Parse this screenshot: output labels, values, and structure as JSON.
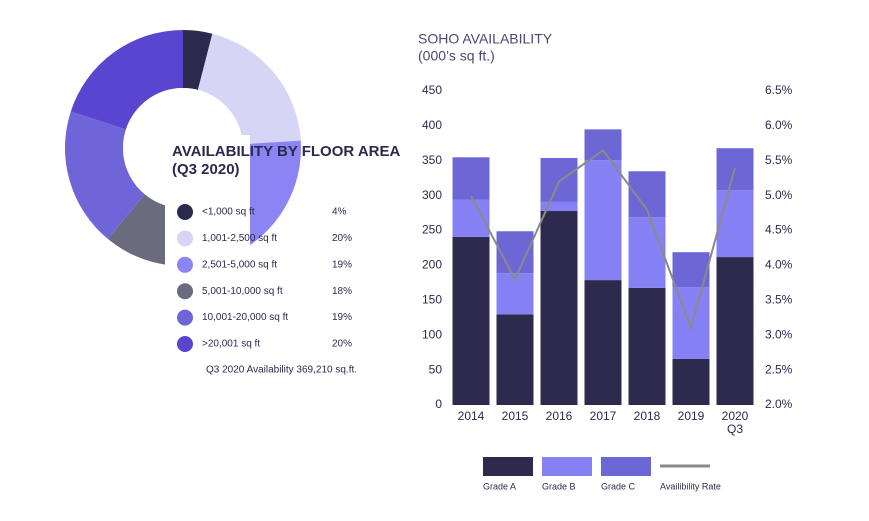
{
  "chart_data": [
    {
      "type": "donut",
      "title": "AVAILABILITY BY FLOOR AREA",
      "subtitle": "(Q3 2020)",
      "categories": [
        "<1,000 sq ft",
        "1,001-2,500 sq ft",
        "2,501-5,000 sq ft",
        "5,001-10,000 sq ft",
        "10,001-20,000 sq ft",
        ">20,001 sq ft"
      ],
      "values": [
        4,
        20,
        19,
        18,
        19,
        20
      ],
      "value_labels": [
        "4%",
        "20%",
        "19%",
        "18%",
        "19%",
        "20%"
      ],
      "colors": [
        "#2b2a4c",
        "#d6d5f5",
        "#8b84f5",
        "#6b6b7e",
        "#6e66d8",
        "#5a45d0"
      ],
      "note": "Q3 2020 Availability 369,210 sq.ft."
    },
    {
      "type": "bar",
      "title": "SOHO AVAILABILITY",
      "subtitle": "(000’s sq ft.)",
      "categories": [
        "2014",
        "2015",
        "2016",
        "2017",
        "2018",
        "2019",
        "2020 Q3"
      ],
      "series": [
        {
          "name": "Grade A",
          "color": "#2d2a4e",
          "values": [
            241,
            130,
            278,
            179,
            168,
            66,
            212
          ]
        },
        {
          "name": "Grade B",
          "color": "#8680f5",
          "values": [
            53,
            59,
            13,
            172,
            101,
            103,
            96
          ]
        },
        {
          "name": "Grade C",
          "color": "#6d67d6",
          "values": [
            61,
            60,
            63,
            44,
            66,
            50,
            60
          ]
        },
        {
          "name": "Availibility Rate",
          "color": "#8a8a8a",
          "axis": "y2",
          "values": [
            5.0,
            3.8,
            5.2,
            5.65,
            4.8,
            3.1,
            5.4
          ]
        }
      ],
      "ylim": [
        0,
        450
      ],
      "yticks": [
        0,
        50,
        100,
        150,
        200,
        250,
        300,
        350,
        400,
        450
      ],
      "y2lim": [
        2.0,
        6.5
      ],
      "y2ticks": [
        {
          "value": 2.0,
          "label": "2.0%"
        },
        {
          "value": 2.5,
          "label": "2.5%"
        },
        {
          "value": 3.0,
          "label": "3.0%"
        },
        {
          "value": 3.5,
          "label": "3.5%"
        },
        {
          "value": 4.0,
          "label": "4.0%"
        },
        {
          "value": 4.5,
          "label": "4.5%"
        },
        {
          "value": 5.0,
          "label": "5.0%"
        },
        {
          "value": 5.5,
          "label": "5.5%"
        },
        {
          "value": 6.0,
          "label": "6.0%"
        },
        {
          "value": 6.5,
          "label": "6.5%"
        }
      ],
      "legend": "bottom"
    }
  ]
}
